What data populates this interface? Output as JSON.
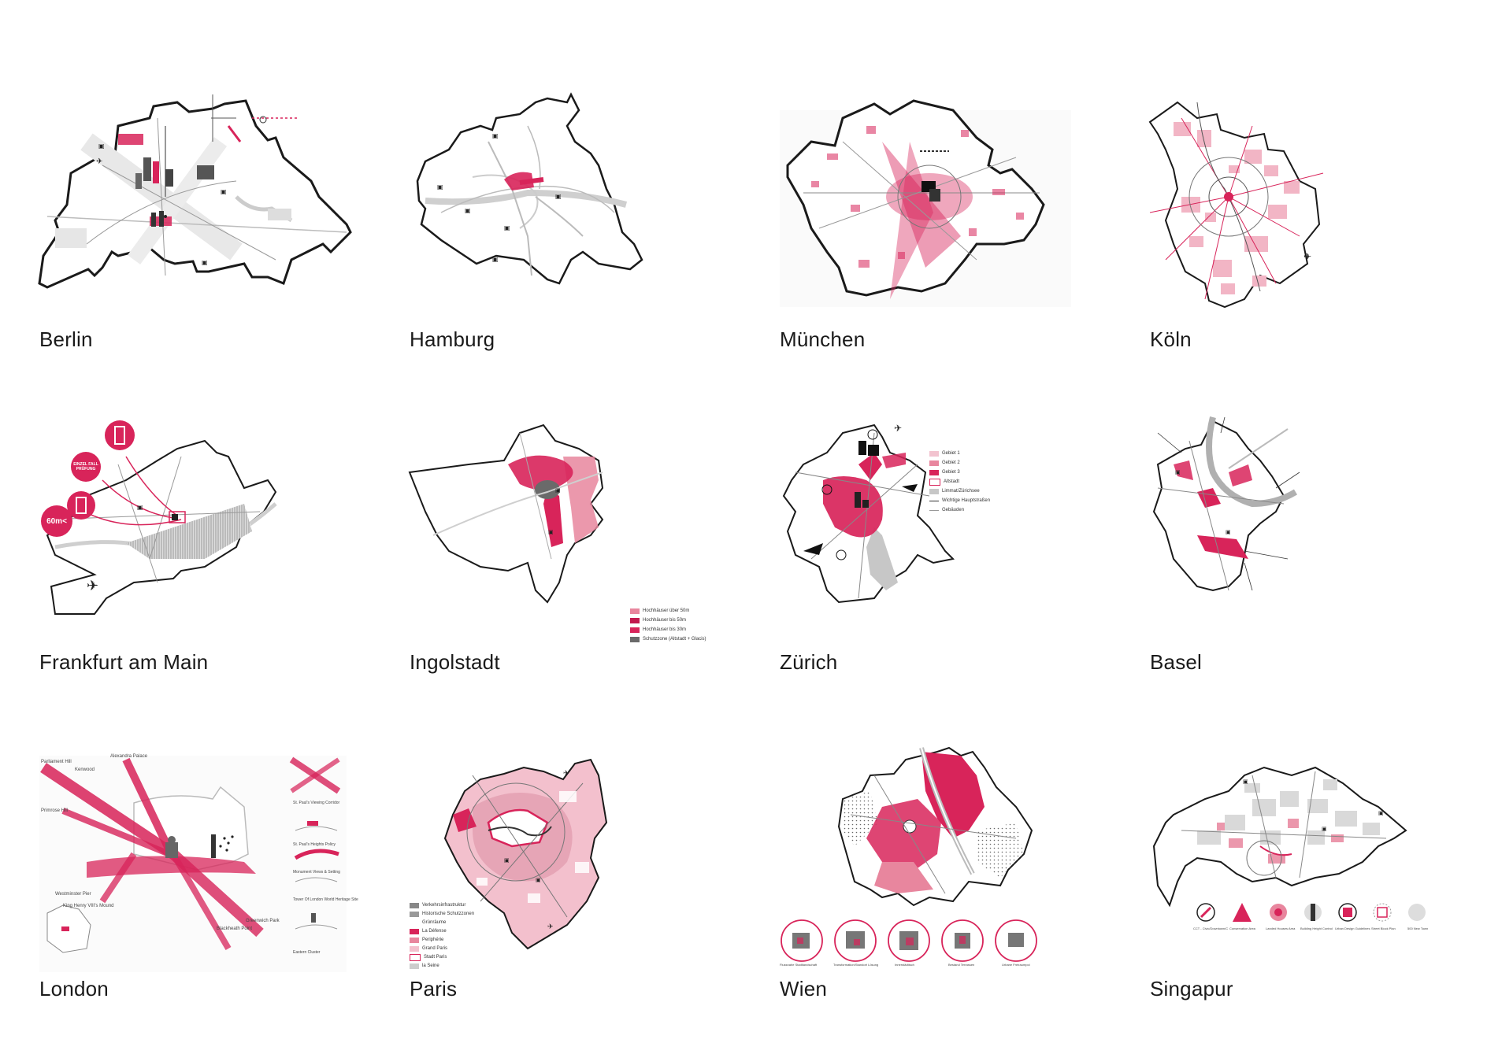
{
  "colors": {
    "accent": "#d8245a",
    "accent_light": "#e8869e",
    "accent_pale": "#f2c3cf",
    "outline": "#1a1a1a",
    "road": "#b9b9b9",
    "river": "#cfcfcf"
  },
  "cities": [
    {
      "name": "Berlin"
    },
    {
      "name": "Hamburg"
    },
    {
      "name": "München"
    },
    {
      "name": "Köln"
    },
    {
      "name": "Frankfurt am Main"
    },
    {
      "name": "Ingolstadt"
    },
    {
      "name": "Zürich"
    },
    {
      "name": "Basel"
    },
    {
      "name": "London"
    },
    {
      "name": "Paris"
    },
    {
      "name": "Wien"
    },
    {
      "name": "Singapur"
    }
  ],
  "frankfurt": {
    "callout_60m": "60m<",
    "callout_check": "EINZEL FALL PRÜFUNG"
  },
  "ingolstadt": {
    "legend": [
      "Hochhäuser über 50m",
      "Hochhäuser bis 50m",
      "Hochhäuser bis 30m",
      "Schutzzone (Altstadt + Glacis)"
    ]
  },
  "zuerich": {
    "legend": [
      "Gebiet 1",
      "Gebiet 2",
      "Gebiet 3",
      "Altstadt",
      "Limmat/Zürichsee",
      "Wichtige Hauptstraßen",
      "Gebäuden"
    ]
  },
  "london": {
    "labels": [
      "Parliament Hill",
      "Alexandra Palace",
      "Kenwood",
      "Primrose Hill",
      "Westminster Pier",
      "King Henry VIII's Mound",
      "Greenwich Park",
      "Blackheath Point"
    ],
    "side_labels": [
      "St. Paul's Viewing Corridor",
      "St. Paul's Heights Policy",
      "Monument Views & Setting",
      "Tower Of London World Heritage Site",
      "Eastern Cluster"
    ]
  },
  "paris": {
    "legend": [
      "Verkehrsinfrastruktur",
      "Historische Schutzzonen",
      "Grünräume",
      "La Défense",
      "Periphérie",
      "Grand Paris",
      "Stadt Paris",
      "la Seine"
    ]
  },
  "wien": {
    "circles": [
      "Flussnahe Stadtlandschaft",
      "Transformation/Standort Lösung",
      "Innerstädtisch",
      "Bestand Terrassen",
      "Urbane Freiraumpol"
    ]
  },
  "singapur": {
    "legend": [
      "CCT - Civic/Downtown/C",
      "Conservation Area",
      "Landed Houses Area",
      "Building Height Control",
      "Urban Design Guidelines",
      "Street Block Plan",
      "500 New Town"
    ]
  }
}
